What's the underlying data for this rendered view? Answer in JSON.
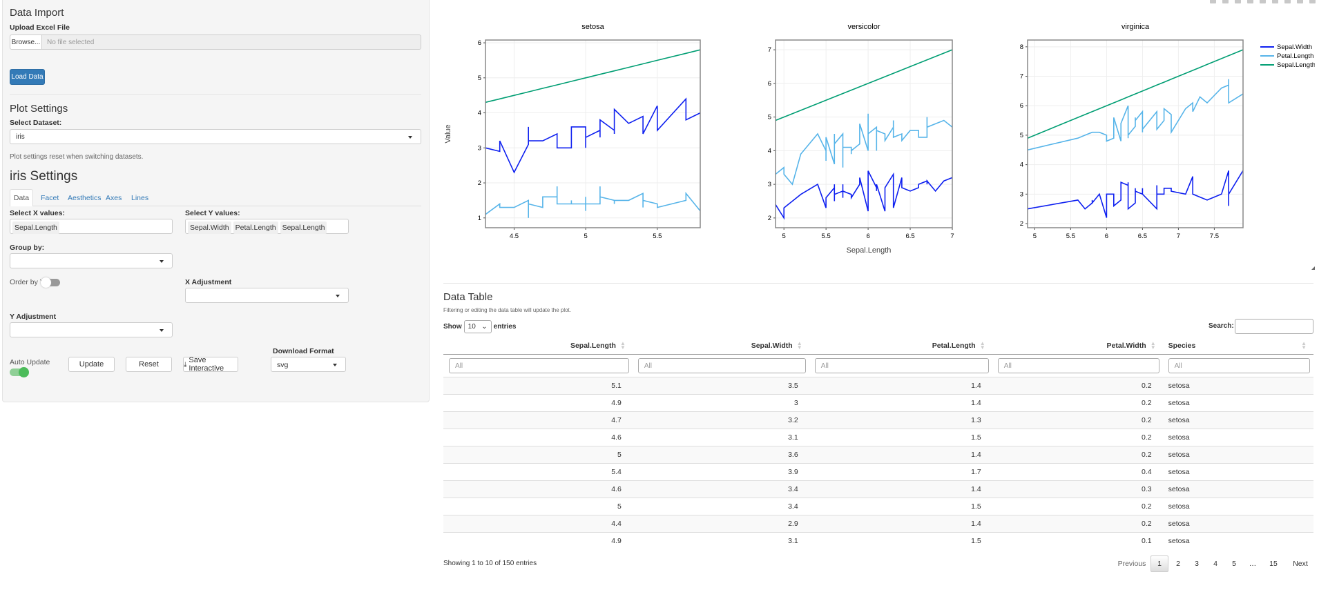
{
  "sidebar": {
    "data_import": {
      "title": "Data Import",
      "upload_label": "Upload Excel File",
      "browse": "Browse...",
      "file_placeholder": "No file selected",
      "load_button": "Load Data"
    },
    "plot_settings": {
      "title": "Plot Settings",
      "dataset_label": "Select Dataset:",
      "dataset_value": "iris",
      "help": "Plot settings reset when switching datasets."
    },
    "settings_title": "iris Settings",
    "tabs": [
      {
        "label": "Data",
        "active": true
      },
      {
        "label": "Facet"
      },
      {
        "label": "Aesthetics"
      },
      {
        "label": "Axes"
      },
      {
        "label": "Lines"
      }
    ],
    "x_label": "Select X values:",
    "x_values": [
      "Sepal.Length"
    ],
    "y_label": "Select Y values:",
    "y_values": [
      "Sepal.Width",
      "Petal.Length",
      "Sepal.Length"
    ],
    "group_label": "Group by:",
    "order_label": "Order by Y",
    "order_on": false,
    "x_adj_label": "X Adjustment",
    "y_adj_label": "Y Adjustment",
    "auto_update_label": "Auto Update",
    "auto_update_on": true,
    "update_button": "Update",
    "reset_button": "Reset",
    "save_button": "Save Interactive",
    "download_label": "Download Format",
    "download_value": "svg",
    "accent": "#337ab7",
    "toggle_on_color": "#4cbb5a"
  },
  "modebar_icons": [
    "camera-icon",
    "zoom-icon",
    "pan-icon",
    "zoom-in-icon",
    "zoom-out-icon",
    "autoscale-icon",
    "home-icon",
    "compare-hover-icon",
    "closest-hover-icon"
  ],
  "chart_data": {
    "type": "line",
    "ylabel": "Value",
    "xlabel": "Sepal.Length",
    "legend_position": "right",
    "grid": true,
    "series_names": [
      "Sepal.Width",
      "Petal.Length",
      "Sepal.Length"
    ],
    "series_colors": {
      "Sepal.Width": "#0d1ff0",
      "Petal.Length": "#56b4e9",
      "Sepal.Length": "#009e73"
    },
    "panels": [
      {
        "title": "setosa",
        "xlim": [
          4.3,
          5.8
        ],
        "ylim": [
          0.72,
          6.08
        ],
        "xticks": [
          4.5,
          5,
          5.5
        ],
        "yticks": [
          1,
          2,
          3,
          4,
          5,
          6
        ],
        "x": [
          5.1,
          4.9,
          4.7,
          4.6,
          5.0,
          5.4,
          4.6,
          5.0,
          4.4,
          4.9,
          5.4,
          4.8,
          4.8,
          4.3,
          5.8,
          5.7,
          5.4,
          5.1,
          5.7,
          5.1,
          5.4,
          5.1,
          4.6,
          5.1,
          4.8,
          5.0,
          5.0,
          5.2,
          5.2,
          4.7,
          4.8,
          5.4,
          5.2,
          5.5,
          4.9,
          5.0,
          5.5,
          4.9,
          4.4,
          5.1,
          5.0,
          4.5,
          4.4,
          5.0,
          5.1,
          4.8,
          5.1,
          4.6,
          5.3,
          5.0
        ],
        "Sepal.Width": [
          3.5,
          3.0,
          3.2,
          3.1,
          3.6,
          3.9,
          3.4,
          3.4,
          2.9,
          3.1,
          3.7,
          3.4,
          3.0,
          3.0,
          4.0,
          4.4,
          3.9,
          3.5,
          3.8,
          3.8,
          3.4,
          3.7,
          3.6,
          3.3,
          3.4,
          3.0,
          3.4,
          3.5,
          3.4,
          3.2,
          3.1,
          3.4,
          4.1,
          4.2,
          3.1,
          3.2,
          3.5,
          3.6,
          3.0,
          3.4,
          3.5,
          2.3,
          3.2,
          3.5,
          3.8,
          3.0,
          3.8,
          3.2,
          3.7,
          3.3
        ],
        "Petal.Length": [
          1.4,
          1.4,
          1.3,
          1.5,
          1.4,
          1.7,
          1.4,
          1.5,
          1.4,
          1.5,
          1.5,
          1.6,
          1.4,
          1.1,
          1.2,
          1.5,
          1.3,
          1.4,
          1.7,
          1.5,
          1.7,
          1.5,
          1.0,
          1.7,
          1.9,
          1.6,
          1.6,
          1.5,
          1.4,
          1.6,
          1.6,
          1.5,
          1.5,
          1.4,
          1.5,
          1.2,
          1.3,
          1.4,
          1.3,
          1.5,
          1.3,
          1.3,
          1.3,
          1.6,
          1.9,
          1.4,
          1.6,
          1.4,
          1.5,
          1.4
        ]
      },
      {
        "title": "versicolor",
        "xlim": [
          4.9,
          7.0
        ],
        "ylim": [
          1.71,
          7.29
        ],
        "xticks": [
          5,
          5.5,
          6,
          6.5,
          7
        ],
        "yticks": [
          2,
          3,
          4,
          5,
          6,
          7
        ],
        "x": [
          7.0,
          6.4,
          6.9,
          5.5,
          6.5,
          5.7,
          6.3,
          4.9,
          6.6,
          5.2,
          5.0,
          5.9,
          6.0,
          6.1,
          5.6,
          6.7,
          5.6,
          5.8,
          6.2,
          5.6,
          5.9,
          6.1,
          6.3,
          6.1,
          6.4,
          6.6,
          6.8,
          6.7,
          6.0,
          5.7,
          5.5,
          5.5,
          5.8,
          6.0,
          5.4,
          6.0,
          6.7,
          6.3,
          5.6,
          5.5,
          5.5,
          6.1,
          5.8,
          5.0,
          5.6,
          5.7,
          5.7,
          6.2,
          5.1,
          5.7
        ],
        "Sepal.Width": [
          3.2,
          3.2,
          3.1,
          2.3,
          2.8,
          2.8,
          3.3,
          2.4,
          2.9,
          2.7,
          2.0,
          3.0,
          2.2,
          2.9,
          2.9,
          3.1,
          3.0,
          2.7,
          2.2,
          2.5,
          3.2,
          2.8,
          2.5,
          2.8,
          2.9,
          3.0,
          2.8,
          3.0,
          2.9,
          2.6,
          2.4,
          2.4,
          2.7,
          2.7,
          3.0,
          3.4,
          3.1,
          2.3,
          3.0,
          2.5,
          2.6,
          3.0,
          2.6,
          2.3,
          2.7,
          3.0,
          2.9,
          2.9,
          2.5,
          2.8
        ],
        "Petal.Length": [
          4.7,
          4.5,
          4.9,
          4.0,
          4.6,
          4.5,
          4.7,
          3.3,
          4.6,
          3.9,
          3.5,
          4.2,
          4.0,
          4.7,
          3.6,
          4.4,
          4.5,
          4.1,
          4.5,
          3.9,
          4.8,
          4.0,
          4.9,
          4.7,
          4.3,
          4.4,
          4.8,
          5.0,
          4.5,
          3.5,
          3.8,
          3.7,
          3.9,
          5.1,
          4.5,
          4.5,
          4.7,
          4.4,
          4.1,
          4.0,
          4.4,
          4.6,
          4.0,
          3.3,
          4.2,
          4.2,
          4.2,
          4.3,
          3.0,
          4.1
        ]
      },
      {
        "title": "virginica",
        "xlim": [
          4.9,
          7.9
        ],
        "ylim": [
          1.86,
          8.23
        ],
        "xticks": [
          5,
          5.5,
          6,
          6.5,
          7,
          7.5
        ],
        "yticks": [
          2,
          3,
          4,
          5,
          6,
          7,
          8
        ],
        "x": [
          6.3,
          5.8,
          7.1,
          6.3,
          6.5,
          7.6,
          4.9,
          7.3,
          6.7,
          7.2,
          6.5,
          6.4,
          6.8,
          5.7,
          5.8,
          6.4,
          6.5,
          7.7,
          7.7,
          6.0,
          6.9,
          5.6,
          7.7,
          6.3,
          6.7,
          7.2,
          6.2,
          6.1,
          6.4,
          7.2,
          7.4,
          7.9,
          6.4,
          6.3,
          6.1,
          7.7,
          6.3,
          6.4,
          6.0,
          6.9,
          6.7,
          6.9,
          5.8,
          6.8,
          6.7,
          6.7,
          6.3,
          6.5,
          6.2,
          5.9
        ],
        "Sepal.Width": [
          3.3,
          2.7,
          3.0,
          2.9,
          3.0,
          3.0,
          2.5,
          2.9,
          2.5,
          3.6,
          3.2,
          2.7,
          3.0,
          2.5,
          2.8,
          3.2,
          3.0,
          3.8,
          2.6,
          2.2,
          3.2,
          2.8,
          2.8,
          2.7,
          3.3,
          3.2,
          2.8,
          3.0,
          2.8,
          3.0,
          2.8,
          3.8,
          2.8,
          2.8,
          2.6,
          3.0,
          3.4,
          3.1,
          3.0,
          3.1,
          3.1,
          3.1,
          2.7,
          3.2,
          3.3,
          3.0,
          2.5,
          3.0,
          3.4,
          3.0
        ],
        "Petal.Length": [
          6.0,
          5.1,
          5.9,
          5.6,
          5.8,
          6.6,
          4.5,
          6.3,
          5.8,
          6.1,
          5.1,
          5.3,
          5.5,
          5.0,
          5.1,
          5.3,
          5.5,
          6.7,
          6.9,
          5.0,
          5.7,
          4.9,
          6.7,
          4.9,
          5.7,
          6.0,
          4.8,
          4.9,
          5.6,
          5.8,
          6.1,
          6.4,
          5.6,
          5.1,
          5.6,
          6.1,
          5.6,
          5.5,
          4.8,
          5.4,
          5.6,
          5.1,
          5.1,
          5.9,
          5.7,
          5.2,
          5.0,
          5.2,
          5.4,
          5.1
        ]
      }
    ]
  },
  "table": {
    "title": "Data Table",
    "subtitle": "Filtering or editing the data table will update the plot.",
    "show": "Show",
    "entries": "entries",
    "page_length": "10",
    "search_label": "Search:",
    "search_value": "",
    "filter_placeholder": "All",
    "columns": [
      "Sepal.Length",
      "Sepal.Width",
      "Petal.Length",
      "Petal.Width",
      "Species"
    ],
    "rows": [
      [
        "5.1",
        "3.5",
        "1.4",
        "0.2",
        "setosa"
      ],
      [
        "4.9",
        "3",
        "1.4",
        "0.2",
        "setosa"
      ],
      [
        "4.7",
        "3.2",
        "1.3",
        "0.2",
        "setosa"
      ],
      [
        "4.6",
        "3.1",
        "1.5",
        "0.2",
        "setosa"
      ],
      [
        "5",
        "3.6",
        "1.4",
        "0.2",
        "setosa"
      ],
      [
        "5.4",
        "3.9",
        "1.7",
        "0.4",
        "setosa"
      ],
      [
        "4.6",
        "3.4",
        "1.4",
        "0.3",
        "setosa"
      ],
      [
        "5",
        "3.4",
        "1.5",
        "0.2",
        "setosa"
      ],
      [
        "4.4",
        "2.9",
        "1.4",
        "0.2",
        "setosa"
      ],
      [
        "4.9",
        "3.1",
        "1.5",
        "0.1",
        "setosa"
      ]
    ],
    "info": "Showing 1 to 10 of 150 entries",
    "pagination": {
      "previous": "Previous",
      "pages": [
        "1",
        "2",
        "3",
        "4",
        "5",
        "…",
        "15"
      ],
      "current": "1",
      "next": "Next"
    }
  }
}
